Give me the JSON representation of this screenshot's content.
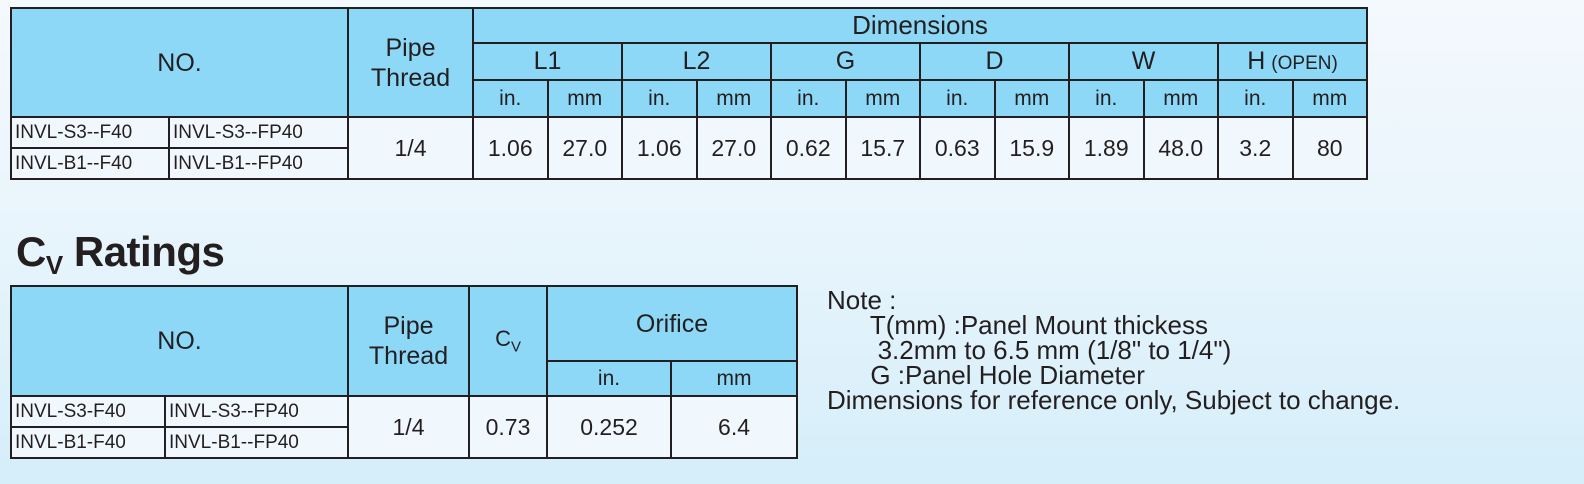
{
  "dimensions_table": {
    "no_header": "NO.",
    "pipe_header_line1": "Pipe",
    "pipe_header_line2": "Thread",
    "group_header": "Dimensions",
    "columns": [
      {
        "label": "L1",
        "suffix": ""
      },
      {
        "label": "L2",
        "suffix": ""
      },
      {
        "label": "G",
        "suffix": ""
      },
      {
        "label": "D",
        "suffix": ""
      },
      {
        "label": "W",
        "suffix": ""
      },
      {
        "label": "H",
        "suffix": "(OPEN)"
      }
    ],
    "units": [
      "in.",
      "mm"
    ],
    "models": [
      [
        "INVL-S3--F40",
        "INVL-S3--FP40"
      ],
      [
        "INVL-B1--F40",
        "INVL-B1--FP40"
      ]
    ],
    "pipe_thread": "1/4",
    "values": [
      "1.06",
      "27.0",
      "1.06",
      "27.0",
      "0.62",
      "15.7",
      "0.63",
      "15.9",
      "1.89",
      "48.0",
      "3.2",
      "80"
    ]
  },
  "cv_section": {
    "title": "C",
    "title_sub": "V",
    "title_rest": " Ratings",
    "no_header": "NO.",
    "pipe_header_line1": "Pipe",
    "pipe_header_line2": "Thread",
    "cv_header": "C",
    "cv_header_sub": "V",
    "orifice_header": "Orifice",
    "units": [
      "in.",
      "mm"
    ],
    "models": [
      [
        "INVL-S3-F40",
        "INVL-S3--FP40"
      ],
      [
        "INVL-B1-F40",
        "INVL-B1--FP40"
      ]
    ],
    "pipe_thread": "1/4",
    "cv": "0.73",
    "orifice_in": "0.252",
    "orifice_mm": "6.4"
  },
  "note": {
    "lines": [
      "Note :",
      "      T(mm) :Panel Mount thickess",
      "       3.2mm to 6.5 mm (1/8\" to 1/4\")",
      "      G :Panel Hole Diameter",
      "Dimensions for reference only, Subject to change."
    ]
  }
}
